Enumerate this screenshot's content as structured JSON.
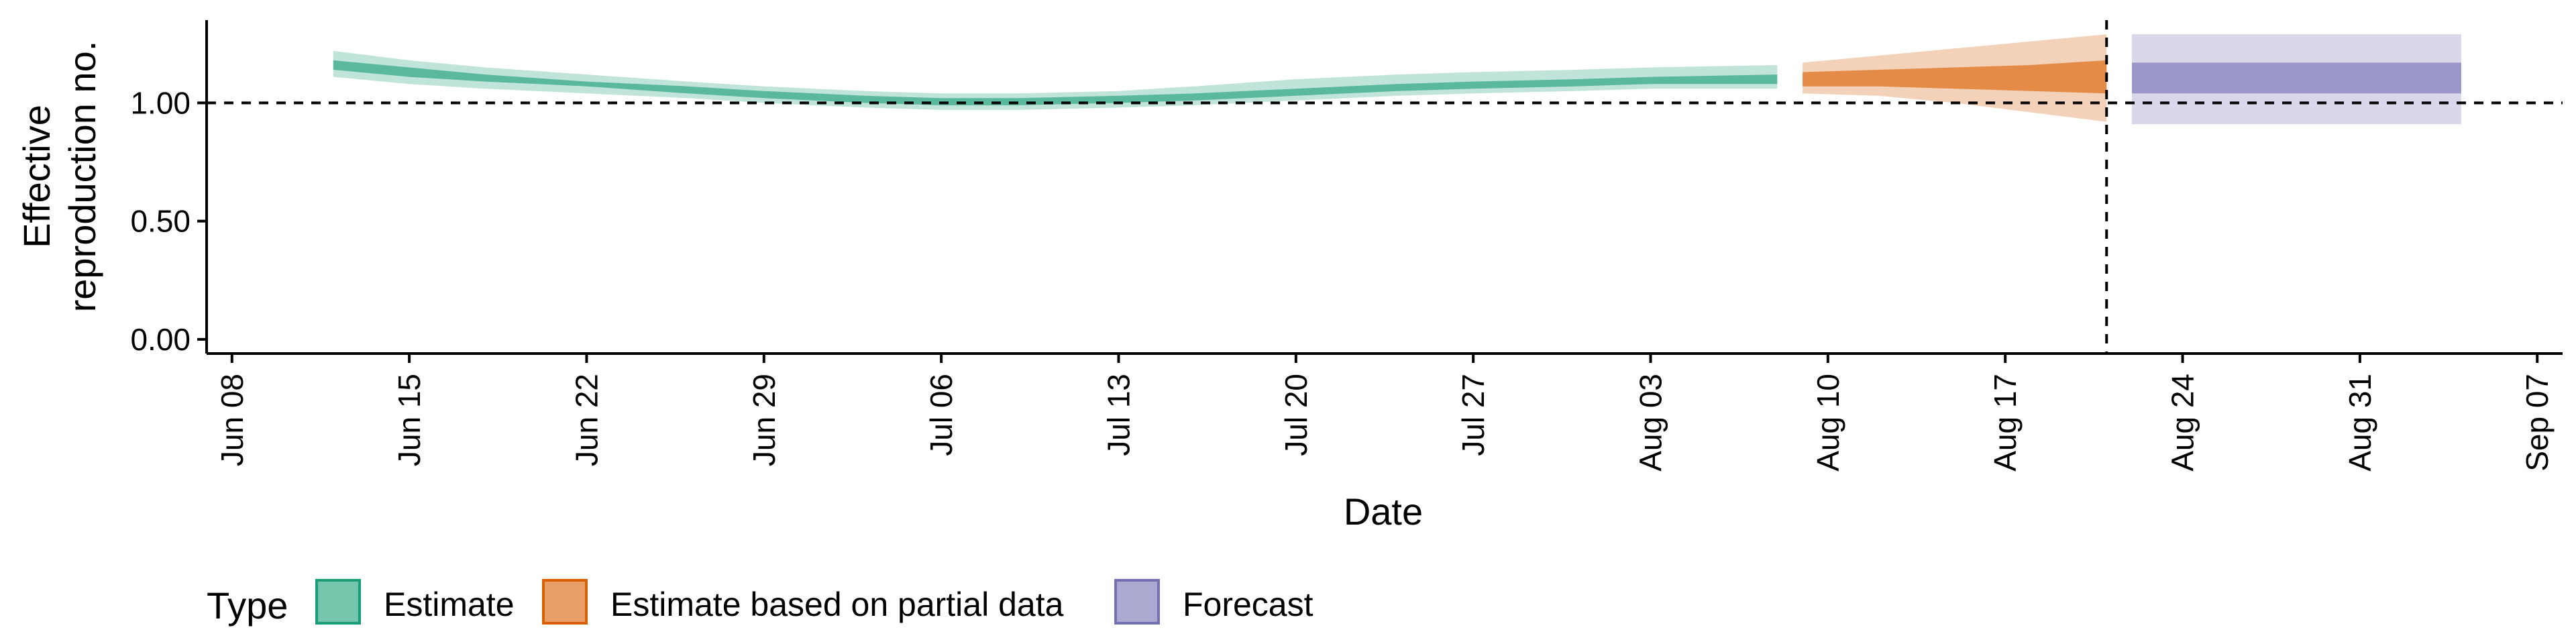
{
  "chart_data": {
    "type": "area",
    "xlabel": "Date",
    "ylabel_lines": [
      "Effective",
      "reproduction no."
    ],
    "xlim": [
      "2020-06-07",
      "2020-09-08"
    ],
    "ylim": [
      -0.06,
      1.35
    ],
    "x_ticks": [
      {
        "date": "2020-06-08",
        "label": "Jun 08"
      },
      {
        "date": "2020-06-15",
        "label": "Jun 15"
      },
      {
        "date": "2020-06-22",
        "label": "Jun 22"
      },
      {
        "date": "2020-06-29",
        "label": "Jun 29"
      },
      {
        "date": "2020-07-06",
        "label": "Jul 06"
      },
      {
        "date": "2020-07-13",
        "label": "Jul 13"
      },
      {
        "date": "2020-07-20",
        "label": "Jul 20"
      },
      {
        "date": "2020-07-27",
        "label": "Jul 27"
      },
      {
        "date": "2020-08-03",
        "label": "Aug 03"
      },
      {
        "date": "2020-08-10",
        "label": "Aug 10"
      },
      {
        "date": "2020-08-17",
        "label": "Aug 17"
      },
      {
        "date": "2020-08-24",
        "label": "Aug 24"
      },
      {
        "date": "2020-08-31",
        "label": "Aug 31"
      },
      {
        "date": "2020-09-07",
        "label": "Sep 07"
      }
    ],
    "y_ticks": [
      {
        "value": 0.0,
        "label": "0.00"
      },
      {
        "value": 0.5,
        "label": "0.50"
      },
      {
        "value": 1.0,
        "label": "1.00"
      }
    ],
    "reference_hline": 1.0,
    "reference_vline": "2020-08-21",
    "legend": {
      "title": "Type",
      "position": "bottom",
      "entries": [
        {
          "label": "Estimate",
          "color": "#1b9e77"
        },
        {
          "label": "Estimate based on partial data",
          "color": "#d95f02"
        },
        {
          "label": "Forecast",
          "color": "#7570b3"
        }
      ]
    },
    "series": [
      {
        "name": "Estimate",
        "color": "#1b9e77",
        "points": [
          {
            "date": "2020-06-12",
            "outer": [
              1.11,
              1.22
            ],
            "inner": [
              1.14,
              1.18
            ]
          },
          {
            "date": "2020-06-15",
            "outer": [
              1.08,
              1.18
            ],
            "inner": [
              1.11,
              1.15
            ]
          },
          {
            "date": "2020-06-18",
            "outer": [
              1.06,
              1.15
            ],
            "inner": [
              1.09,
              1.12
            ]
          },
          {
            "date": "2020-06-22",
            "outer": [
              1.04,
              1.12
            ],
            "inner": [
              1.07,
              1.09
            ]
          },
          {
            "date": "2020-06-26",
            "outer": [
              1.02,
              1.09
            ],
            "inner": [
              1.04,
              1.07
            ]
          },
          {
            "date": "2020-06-29",
            "outer": [
              1.0,
              1.07
            ],
            "inner": [
              1.02,
              1.05
            ]
          },
          {
            "date": "2020-07-03",
            "outer": [
              0.98,
              1.05
            ],
            "inner": [
              1.0,
              1.03
            ]
          },
          {
            "date": "2020-07-06",
            "outer": [
              0.97,
              1.04
            ],
            "inner": [
              0.99,
              1.02
            ]
          },
          {
            "date": "2020-07-09",
            "outer": [
              0.97,
              1.04
            ],
            "inner": [
              0.99,
              1.02
            ]
          },
          {
            "date": "2020-07-13",
            "outer": [
              0.98,
              1.05
            ],
            "inner": [
              1.0,
              1.03
            ]
          },
          {
            "date": "2020-07-16",
            "outer": [
              0.99,
              1.07
            ],
            "inner": [
              1.01,
              1.04
            ]
          },
          {
            "date": "2020-07-20",
            "outer": [
              1.01,
              1.1
            ],
            "inner": [
              1.03,
              1.06
            ]
          },
          {
            "date": "2020-07-24",
            "outer": [
              1.03,
              1.12
            ],
            "inner": [
              1.05,
              1.08
            ]
          },
          {
            "date": "2020-07-27",
            "outer": [
              1.04,
              1.13
            ],
            "inner": [
              1.06,
              1.09
            ]
          },
          {
            "date": "2020-07-31",
            "outer": [
              1.05,
              1.14
            ],
            "inner": [
              1.07,
              1.1
            ]
          },
          {
            "date": "2020-08-03",
            "outer": [
              1.06,
              1.15
            ],
            "inner": [
              1.08,
              1.11
            ]
          },
          {
            "date": "2020-08-08",
            "outer": [
              1.06,
              1.16
            ],
            "inner": [
              1.08,
              1.12
            ]
          }
        ]
      },
      {
        "name": "Estimate based on partial data",
        "color": "#d95f02",
        "points": [
          {
            "date": "2020-08-09",
            "outer": [
              1.04,
              1.17
            ],
            "inner": [
              1.07,
              1.13
            ]
          },
          {
            "date": "2020-08-12",
            "outer": [
              1.03,
              1.2
            ],
            "inner": [
              1.07,
              1.14
            ]
          },
          {
            "date": "2020-08-15",
            "outer": [
              1.0,
              1.23
            ],
            "inner": [
              1.06,
              1.15
            ]
          },
          {
            "date": "2020-08-18",
            "outer": [
              0.96,
              1.26
            ],
            "inner": [
              1.05,
              1.16
            ]
          },
          {
            "date": "2020-08-21",
            "outer": [
              0.92,
              1.29
            ],
            "inner": [
              1.04,
              1.18
            ]
          }
        ]
      },
      {
        "name": "Forecast",
        "color": "#7570b3",
        "points": [
          {
            "date": "2020-08-22",
            "outer": [
              0.91,
              1.29
            ],
            "inner": [
              1.04,
              1.17
            ]
          },
          {
            "date": "2020-09-04",
            "outer": [
              0.91,
              1.29
            ],
            "inner": [
              1.04,
              1.17
            ]
          }
        ]
      }
    ]
  }
}
